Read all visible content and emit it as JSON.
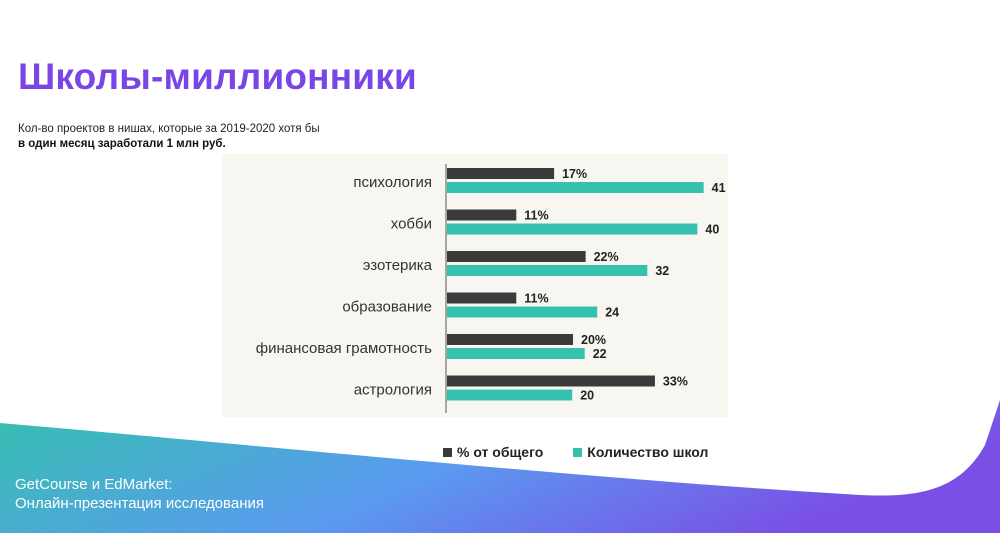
{
  "page": {
    "title": "Школы-миллионники",
    "subtitle_line1": "Кол-во проектов в нишах, которые за 2019-2020 хотя бы",
    "subtitle_line2": "в один месяц заработали 1 млн руб.",
    "footer_line1": "GetCourse и EdMarket:",
    "footer_line2": "Онлайн-презентация исследования"
  },
  "colors": {
    "title": "#7a45e6",
    "series_percent": "#3a3a3a",
    "series_count": "#35c1ad",
    "plot_background": "#f8f6f1",
    "wave_start": "#35c1ad",
    "wave_mid": "#5a9af0",
    "wave_end": "#7a4fe6"
  },
  "chart_data": {
    "type": "bar",
    "orientation": "horizontal",
    "categories": [
      "психология",
      "хобби",
      "эзотерика",
      "образование",
      "финансовая грамотность",
      "астрология"
    ],
    "series": [
      {
        "name": "% от общего",
        "values": [
          17,
          11,
          22,
          11,
          20,
          33
        ],
        "labels": [
          "17%",
          "11%",
          "22%",
          "11%",
          "20%",
          "33%"
        ]
      },
      {
        "name": "Количество школ",
        "values": [
          41,
          40,
          32,
          24,
          22,
          20
        ],
        "labels": [
          "41",
          "40",
          "32",
          "24",
          "22",
          "20"
        ]
      }
    ],
    "legend_position": "bottom",
    "grid": false
  }
}
